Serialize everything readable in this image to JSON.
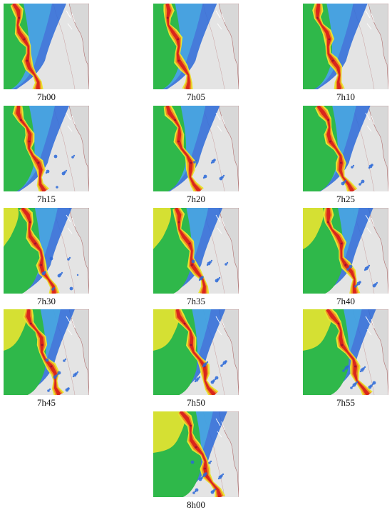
{
  "frames": [
    {
      "label": "7h00",
      "stage": 0
    },
    {
      "label": "7h05",
      "stage": 1
    },
    {
      "label": "7h10",
      "stage": 2
    },
    {
      "label": "7h15",
      "stage": 3
    },
    {
      "label": "7h20",
      "stage": 4
    },
    {
      "label": "7h25",
      "stage": 5
    },
    {
      "label": "7h30",
      "stage": 6
    },
    {
      "label": "7h35",
      "stage": 7
    },
    {
      "label": "7h40",
      "stage": 8
    },
    {
      "label": "7h45",
      "stage": 9
    },
    {
      "label": "7h50",
      "stage": 10
    },
    {
      "label": "7h55",
      "stage": 11
    },
    {
      "label": "8h00",
      "stage": 12
    }
  ],
  "colors": {
    "land": "#e4e4e4",
    "weak": "#2a68d8",
    "light": "#49b3e2",
    "moderate": "#2fb84a",
    "strong": "#e8e431",
    "heavy": "#f08a22",
    "intense": "#d8261d",
    "extreme": "#9a1330"
  }
}
